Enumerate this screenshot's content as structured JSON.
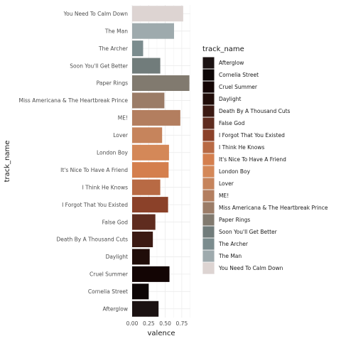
{
  "chart_data": {
    "type": "bar",
    "orientation": "horizontal",
    "xlabel": "valence",
    "ylabel": "track_name",
    "xlim": [
      0,
      0.88
    ],
    "xticks": [
      "0.00",
      "0.25",
      "0.50",
      "0.75"
    ],
    "xtick_values": [
      0,
      0.25,
      0.5,
      0.75
    ],
    "grid": true,
    "legend": {
      "title": "track_name",
      "position": "right"
    },
    "categories": [
      "You Need To Calm Down",
      "The Man",
      "The Archer",
      "Soon You'll Get Better",
      "Paper Rings",
      "Miss Americana & The Heartbreak Prince",
      "ME!",
      "Lover",
      "London Boy",
      "It's Nice To Have A Friend",
      "I Think He Knows",
      "I Forgot That You Existed",
      "False God",
      "Death By A Thousand Cuts",
      "Daylight",
      "Cruel Summer",
      "Cornelia Street",
      "Afterglow"
    ],
    "values": [
      0.771,
      0.633,
      0.166,
      0.425,
      0.865,
      0.487,
      0.728,
      0.453,
      0.557,
      0.551,
      0.425,
      0.543,
      0.351,
      0.313,
      0.265,
      0.564,
      0.25,
      0.399
    ],
    "colors": [
      "#ddd4d2",
      "#9eaaad",
      "#7b8c8e",
      "#717c7b",
      "#817a6f",
      "#9b7c67",
      "#b37e5f",
      "#c6845c",
      "#d48858",
      "#d47f4e",
      "#b86a44",
      "#8b4129",
      "#5f2c1f",
      "#3b1a13",
      "#200d09",
      "#130504",
      "#0d0606",
      "#1b1212"
    ],
    "legend_order": [
      "Afterglow",
      "Cornelia Street",
      "Cruel Summer",
      "Daylight",
      "Death By A Thousand Cuts",
      "False God",
      "I Forgot That You Existed",
      "I Think He Knows",
      "It's Nice To Have A Friend",
      "London Boy",
      "Lover",
      "ME!",
      "Miss Americana & The Heartbreak Prince",
      "Paper Rings",
      "Soon You'll Get Better",
      "The Archer",
      "The Man",
      "You Need To Calm Down"
    ]
  }
}
